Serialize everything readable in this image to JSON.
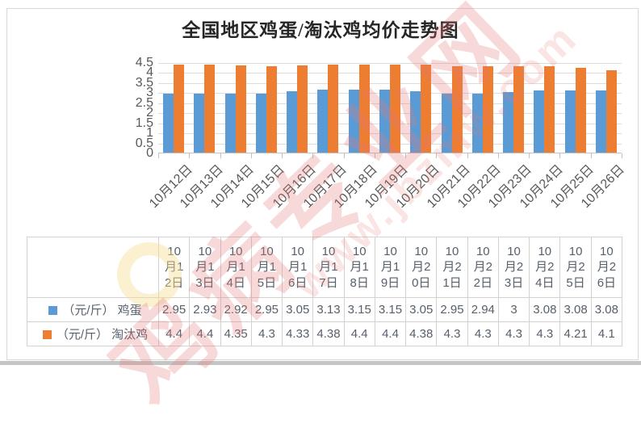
{
  "title": "全国地区鸡蛋/淘汰鸡均价走势图",
  "watermark": {
    "site_name": "鸡病专业网",
    "site_url": "www.jbzmw.com"
  },
  "chart_data": {
    "type": "bar",
    "title": "全国地区鸡蛋/淘汰鸡均价走势图",
    "categories": [
      "10月12日",
      "10月13日",
      "10月14日",
      "10月15日",
      "10月16日",
      "10月17日",
      "10月18日",
      "10月19日",
      "10月20日",
      "10月21日",
      "10月22日",
      "10月23日",
      "10月24日",
      "10月25日",
      "10月26日"
    ],
    "series": [
      {
        "name": "（元/斤） 鸡蛋",
        "color": "#5b9bd5",
        "values": [
          2.95,
          2.93,
          2.92,
          2.95,
          3.05,
          3.13,
          3.15,
          3.15,
          3.05,
          2.95,
          2.94,
          3,
          3.08,
          3.08,
          3.08
        ]
      },
      {
        "name": "（元/斤） 淘汰鸡",
        "color": "#ed7d31",
        "values": [
          4.4,
          4.4,
          4.35,
          4.3,
          4.33,
          4.38,
          4.4,
          4.4,
          4.38,
          4.3,
          4.3,
          4.3,
          4.3,
          4.21,
          4.1
        ]
      }
    ],
    "ylim": [
      0,
      4.5
    ],
    "ytick_step": 0.5,
    "yticks": [
      "4.5",
      "4",
      "3.5",
      "3",
      "2.5",
      "2",
      "1.5",
      "1",
      "0.5",
      "0"
    ],
    "grid": true,
    "legend_position": "data-table-left",
    "data_table_shown": true
  }
}
